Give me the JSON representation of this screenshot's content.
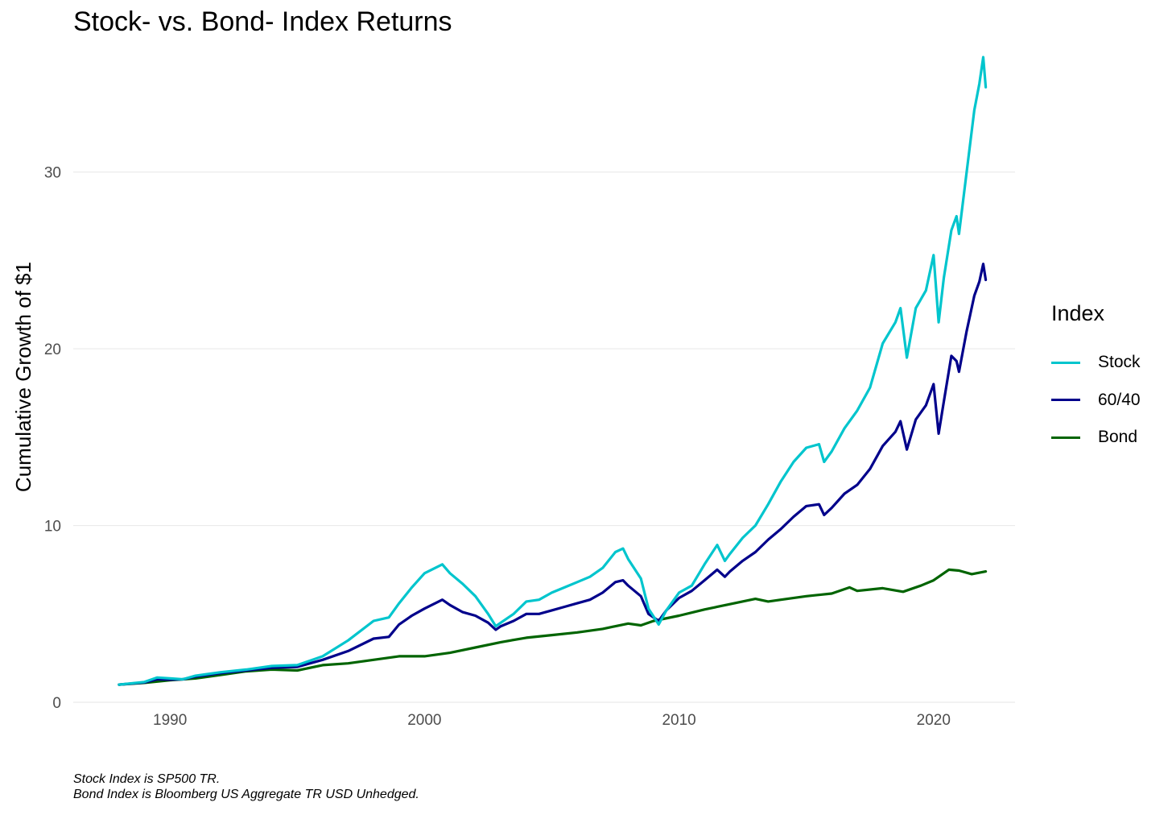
{
  "chart_data": {
    "type": "line",
    "title": "Stock- vs. Bond- Index Returns",
    "xlabel": "",
    "ylabel": "Cumulative Growth of $1",
    "xlim": [
      1986.2,
      2023.2
    ],
    "ylim": [
      0,
      37
    ],
    "x_ticks": [
      1990,
      2000,
      2010,
      2020
    ],
    "x_tick_labels": [
      "1990",
      "2000",
      "2010",
      "2020"
    ],
    "y_ticks": [
      0,
      10,
      20,
      30
    ],
    "y_tick_labels": [
      "0",
      "10",
      "20",
      "30"
    ],
    "grid": true,
    "legend": {
      "title": "Index",
      "position": "right"
    },
    "captions": [
      "Stock Index is SP500 TR.",
      "Bond Index is Bloomberg US Aggregate TR USD Unhedged."
    ],
    "series": [
      {
        "name": "Stock",
        "color": "#00c5cd",
        "points": [
          [
            1988.0,
            1.0
          ],
          [
            1989.0,
            1.15
          ],
          [
            1989.5,
            1.4
          ],
          [
            1990.0,
            1.35
          ],
          [
            1990.5,
            1.3
          ],
          [
            1991.0,
            1.5
          ],
          [
            1992.0,
            1.7
          ],
          [
            1993.0,
            1.85
          ],
          [
            1994.0,
            2.05
          ],
          [
            1995.0,
            2.1
          ],
          [
            1996.0,
            2.6
          ],
          [
            1997.0,
            3.5
          ],
          [
            1998.0,
            4.6
          ],
          [
            1998.6,
            4.8
          ],
          [
            1999.0,
            5.6
          ],
          [
            1999.5,
            6.5
          ],
          [
            2000.0,
            7.3
          ],
          [
            2000.7,
            7.8
          ],
          [
            2001.0,
            7.3
          ],
          [
            2001.5,
            6.7
          ],
          [
            2002.0,
            6.0
          ],
          [
            2002.5,
            5.0
          ],
          [
            2002.8,
            4.3
          ],
          [
            2003.0,
            4.5
          ],
          [
            2003.5,
            5.0
          ],
          [
            2004.0,
            5.7
          ],
          [
            2004.5,
            5.8
          ],
          [
            2005.0,
            6.2
          ],
          [
            2005.5,
            6.5
          ],
          [
            2006.0,
            6.8
          ],
          [
            2006.5,
            7.1
          ],
          [
            2007.0,
            7.6
          ],
          [
            2007.5,
            8.5
          ],
          [
            2007.8,
            8.7
          ],
          [
            2008.0,
            8.1
          ],
          [
            2008.5,
            7.0
          ],
          [
            2008.8,
            5.3
          ],
          [
            2009.2,
            4.4
          ],
          [
            2009.5,
            5.2
          ],
          [
            2010.0,
            6.2
          ],
          [
            2010.5,
            6.6
          ],
          [
            2011.0,
            7.8
          ],
          [
            2011.5,
            8.9
          ],
          [
            2011.8,
            8.0
          ],
          [
            2012.0,
            8.4
          ],
          [
            2012.5,
            9.3
          ],
          [
            2013.0,
            10.0
          ],
          [
            2013.5,
            11.2
          ],
          [
            2014.0,
            12.5
          ],
          [
            2014.5,
            13.6
          ],
          [
            2015.0,
            14.4
          ],
          [
            2015.5,
            14.6
          ],
          [
            2015.7,
            13.6
          ],
          [
            2016.0,
            14.2
          ],
          [
            2016.5,
            15.5
          ],
          [
            2017.0,
            16.5
          ],
          [
            2017.5,
            17.8
          ],
          [
            2018.0,
            20.3
          ],
          [
            2018.5,
            21.5
          ],
          [
            2018.7,
            22.3
          ],
          [
            2018.95,
            19.5
          ],
          [
            2019.3,
            22.3
          ],
          [
            2019.7,
            23.3
          ],
          [
            2020.0,
            25.3
          ],
          [
            2020.2,
            21.5
          ],
          [
            2020.4,
            24.0
          ],
          [
            2020.7,
            26.7
          ],
          [
            2020.9,
            27.5
          ],
          [
            2021.0,
            26.5
          ],
          [
            2021.3,
            30.0
          ],
          [
            2021.6,
            33.5
          ],
          [
            2021.8,
            35.0
          ],
          [
            2021.95,
            36.5
          ],
          [
            2022.05,
            34.8
          ]
        ]
      },
      {
        "name": "60/40",
        "color": "#00008b",
        "points": [
          [
            1988.0,
            1.0
          ],
          [
            1989.0,
            1.12
          ],
          [
            1989.5,
            1.3
          ],
          [
            1990.0,
            1.28
          ],
          [
            1990.5,
            1.3
          ],
          [
            1991.0,
            1.45
          ],
          [
            1992.0,
            1.65
          ],
          [
            1993.0,
            1.8
          ],
          [
            1994.0,
            1.95
          ],
          [
            1995.0,
            2.0
          ],
          [
            1996.0,
            2.4
          ],
          [
            1997.0,
            2.9
          ],
          [
            1998.0,
            3.6
          ],
          [
            1998.6,
            3.7
          ],
          [
            1999.0,
            4.4
          ],
          [
            1999.5,
            4.9
          ],
          [
            2000.0,
            5.3
          ],
          [
            2000.7,
            5.8
          ],
          [
            2001.0,
            5.5
          ],
          [
            2001.5,
            5.1
          ],
          [
            2002.0,
            4.9
          ],
          [
            2002.5,
            4.5
          ],
          [
            2002.8,
            4.1
          ],
          [
            2003.0,
            4.3
          ],
          [
            2003.5,
            4.6
          ],
          [
            2004.0,
            5.0
          ],
          [
            2004.5,
            5.0
          ],
          [
            2005.0,
            5.2
          ],
          [
            2005.5,
            5.4
          ],
          [
            2006.0,
            5.6
          ],
          [
            2006.5,
            5.8
          ],
          [
            2007.0,
            6.2
          ],
          [
            2007.5,
            6.8
          ],
          [
            2007.8,
            6.9
          ],
          [
            2008.0,
            6.6
          ],
          [
            2008.5,
            6.0
          ],
          [
            2008.8,
            5.0
          ],
          [
            2009.2,
            4.6
          ],
          [
            2009.5,
            5.2
          ],
          [
            2010.0,
            5.9
          ],
          [
            2010.5,
            6.3
          ],
          [
            2011.0,
            6.9
          ],
          [
            2011.5,
            7.5
          ],
          [
            2011.8,
            7.1
          ],
          [
            2012.0,
            7.4
          ],
          [
            2012.5,
            8.0
          ],
          [
            2013.0,
            8.5
          ],
          [
            2013.5,
            9.2
          ],
          [
            2014.0,
            9.8
          ],
          [
            2014.5,
            10.5
          ],
          [
            2015.0,
            11.1
          ],
          [
            2015.5,
            11.2
          ],
          [
            2015.7,
            10.6
          ],
          [
            2016.0,
            11.0
          ],
          [
            2016.5,
            11.8
          ],
          [
            2017.0,
            12.3
          ],
          [
            2017.5,
            13.2
          ],
          [
            2018.0,
            14.5
          ],
          [
            2018.5,
            15.3
          ],
          [
            2018.7,
            15.9
          ],
          [
            2018.95,
            14.3
          ],
          [
            2019.3,
            16.0
          ],
          [
            2019.7,
            16.8
          ],
          [
            2020.0,
            18.0
          ],
          [
            2020.2,
            15.2
          ],
          [
            2020.4,
            17.0
          ],
          [
            2020.7,
            19.6
          ],
          [
            2020.9,
            19.3
          ],
          [
            2021.0,
            18.7
          ],
          [
            2021.3,
            21.0
          ],
          [
            2021.6,
            23.0
          ],
          [
            2021.8,
            23.8
          ],
          [
            2021.95,
            24.8
          ],
          [
            2022.05,
            23.9
          ]
        ]
      },
      {
        "name": "Bond",
        "color": "#006400",
        "points": [
          [
            1988.0,
            1.0
          ],
          [
            1989.0,
            1.1
          ],
          [
            1990.0,
            1.25
          ],
          [
            1991.0,
            1.35
          ],
          [
            1992.0,
            1.55
          ],
          [
            1993.0,
            1.75
          ],
          [
            1994.0,
            1.85
          ],
          [
            1995.0,
            1.8
          ],
          [
            1996.0,
            2.1
          ],
          [
            1997.0,
            2.2
          ],
          [
            1998.0,
            2.4
          ],
          [
            1999.0,
            2.6
          ],
          [
            2000.0,
            2.6
          ],
          [
            2001.0,
            2.8
          ],
          [
            2002.0,
            3.1
          ],
          [
            2003.0,
            3.4
          ],
          [
            2004.0,
            3.65
          ],
          [
            2005.0,
            3.8
          ],
          [
            2006.0,
            3.95
          ],
          [
            2007.0,
            4.15
          ],
          [
            2008.0,
            4.45
          ],
          [
            2008.5,
            4.35
          ],
          [
            2009.0,
            4.6
          ],
          [
            2010.0,
            4.9
          ],
          [
            2011.0,
            5.25
          ],
          [
            2012.0,
            5.55
          ],
          [
            2013.0,
            5.85
          ],
          [
            2013.5,
            5.7
          ],
          [
            2014.0,
            5.8
          ],
          [
            2015.0,
            6.0
          ],
          [
            2016.0,
            6.15
          ],
          [
            2016.7,
            6.5
          ],
          [
            2017.0,
            6.3
          ],
          [
            2018.0,
            6.45
          ],
          [
            2018.8,
            6.25
          ],
          [
            2019.5,
            6.6
          ],
          [
            2020.0,
            6.9
          ],
          [
            2020.6,
            7.5
          ],
          [
            2021.0,
            7.45
          ],
          [
            2021.5,
            7.25
          ],
          [
            2022.05,
            7.4
          ]
        ]
      }
    ]
  }
}
